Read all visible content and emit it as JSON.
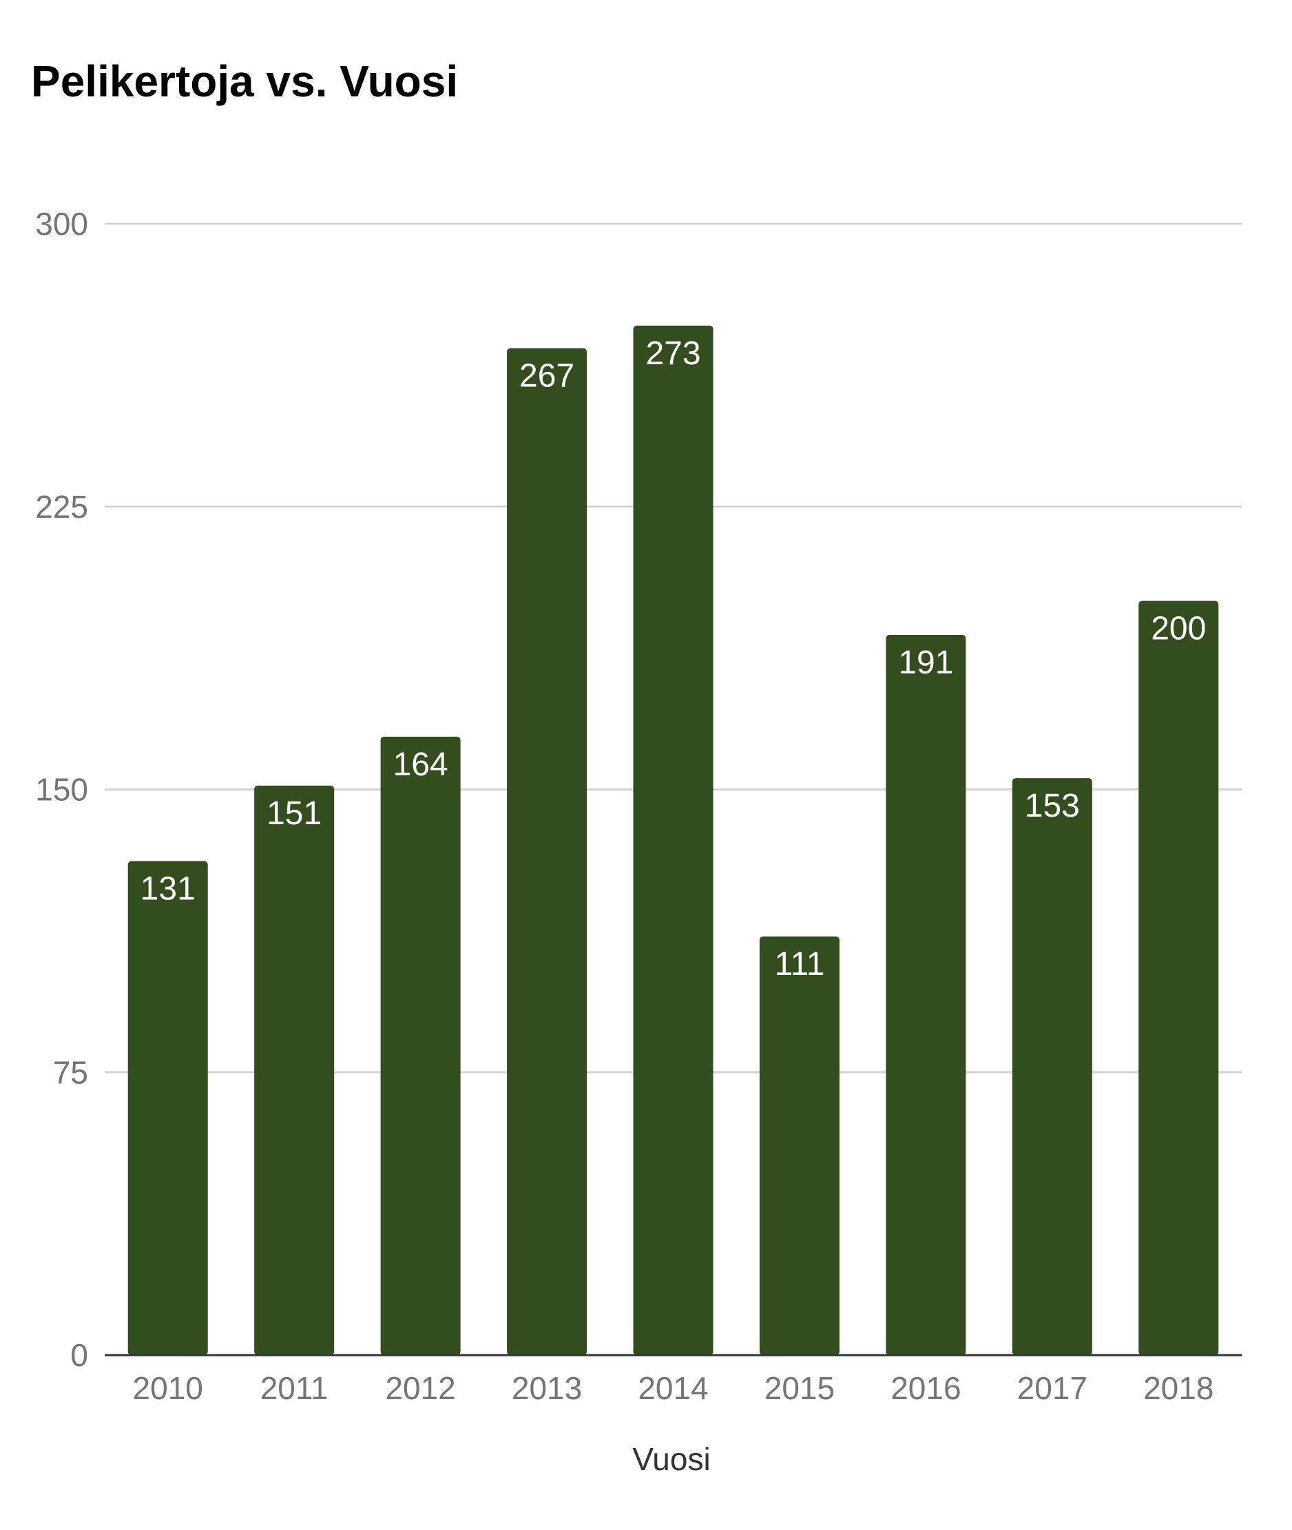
{
  "chart_data": {
    "type": "bar",
    "title": "Pelikertoja vs. Vuosi",
    "xlabel": "Vuosi",
    "ylabel": "",
    "categories": [
      "2010",
      "2011",
      "2012",
      "2013",
      "2014",
      "2015",
      "2016",
      "2017",
      "2018"
    ],
    "values": [
      131,
      151,
      164,
      267,
      273,
      111,
      191,
      153,
      200
    ],
    "ylim": [
      0,
      300
    ],
    "yticks": [
      0,
      75,
      150,
      225,
      300
    ],
    "grid": true,
    "legend": "none",
    "data_labels": "inside-end",
    "bar_color": "#344d1e"
  }
}
